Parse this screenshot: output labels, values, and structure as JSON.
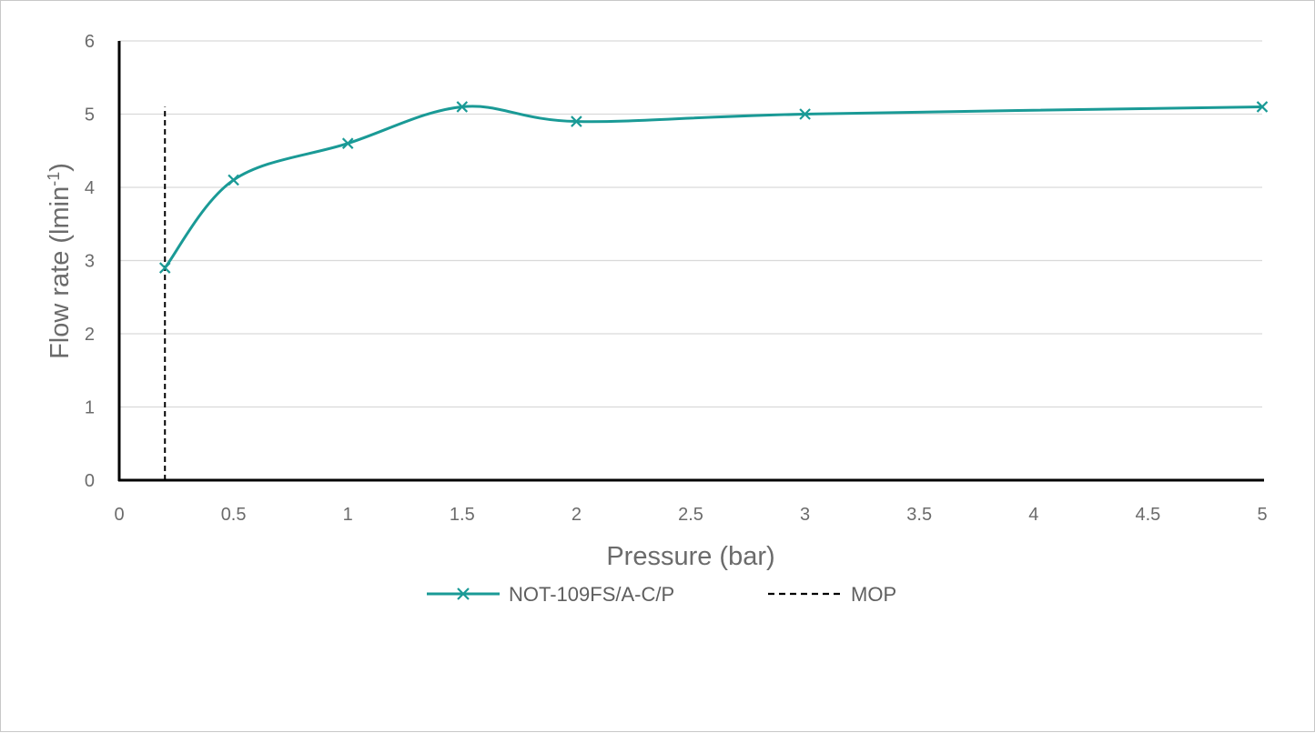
{
  "chart_data": {
    "type": "line",
    "xlabel": "Pressure (bar)",
    "ylabel_main": "Flow rate (lmin",
    "ylabel_sup": "-1",
    "ylabel_close": ")",
    "xlim": [
      0,
      5
    ],
    "ylim": [
      0,
      6
    ],
    "x_ticks": [
      "0",
      "0.5",
      "1",
      "1.5",
      "2",
      "2.5",
      "3",
      "3.5",
      "4",
      "4.5",
      "5"
    ],
    "y_ticks": [
      "0",
      "1",
      "2",
      "3",
      "4",
      "5",
      "6"
    ],
    "grid": "horizontal",
    "legend_position": "bottom",
    "series": [
      {
        "name": "NOT-109FS/A-C/P",
        "color": "#1a9a96",
        "marker": "x",
        "smooth": true,
        "x": [
          0.2,
          0.5,
          1,
          1.5,
          2,
          3,
          5
        ],
        "y": [
          2.9,
          4.1,
          4.6,
          5.1,
          4.9,
          5.0,
          5.1
        ]
      },
      {
        "name": "MOP",
        "color": "#000000",
        "style": "dashed",
        "x": [
          0.2,
          0.2
        ],
        "y": [
          0,
          5.1
        ]
      }
    ]
  }
}
